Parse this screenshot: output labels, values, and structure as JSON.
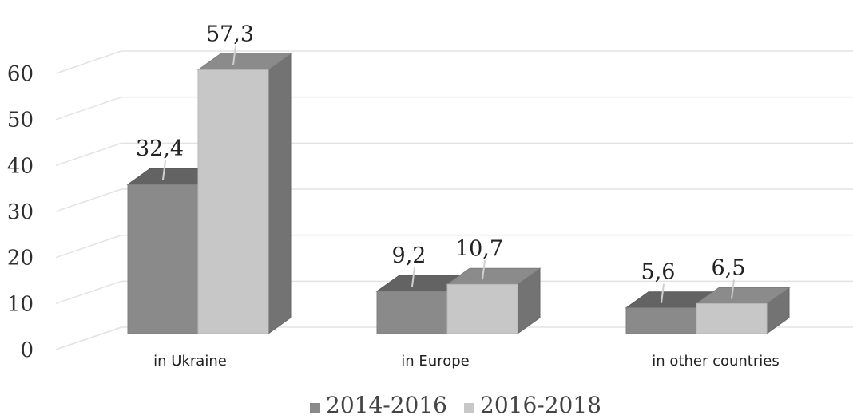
{
  "chart_data": {
    "type": "bar",
    "categories": [
      "in Ukraine",
      "in Europe",
      "in other countries"
    ],
    "series": [
      {
        "name": "2014-2016",
        "values": [
          32.4,
          9.2,
          5.6
        ],
        "labels": [
          "32,4",
          "9,2",
          "5,6"
        ],
        "color": "#8a8a8a"
      },
      {
        "name": "2016-2018",
        "values": [
          57.3,
          10.7,
          6.5
        ],
        "labels": [
          "57,3",
          "10,7",
          "6,5"
        ],
        "color": "#c7c7c7"
      }
    ],
    "yticks": [
      "0",
      "10",
      "20",
      "30",
      "40",
      "50",
      "60"
    ],
    "ylim": [
      0,
      60
    ],
    "grid": true,
    "legend": "bottom"
  }
}
